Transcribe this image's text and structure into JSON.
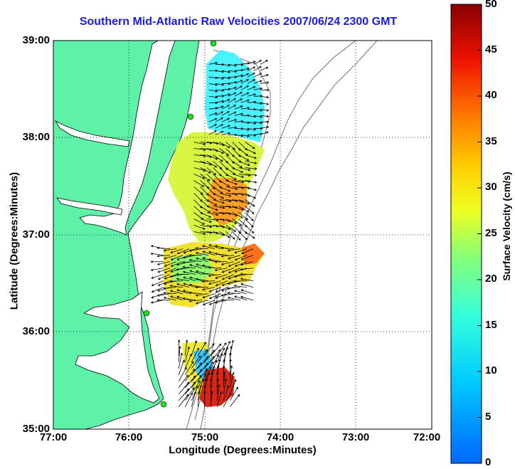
{
  "title": "Southern Mid-Atlantic Raw Velocities 2007/06/24 2300 GMT",
  "axes": {
    "xlabel": "Longitude (Degrees:Minutes)",
    "ylabel": "Latitude (Degrees:Minutes)",
    "x_ticks": [
      "77:00",
      "76:00",
      "75:00",
      "74:00",
      "73:00",
      "72:00"
    ],
    "y_ticks": [
      "39:00",
      "38:00",
      "37:00",
      "36:00",
      "35:00"
    ],
    "x_range": [
      -77,
      -72
    ],
    "y_range": [
      35,
      39
    ],
    "grid": "dotted"
  },
  "colorbar": {
    "label": "Surface Velocity (cm/s)",
    "ticks": [
      "0",
      "5",
      "10",
      "15",
      "20",
      "25",
      "30",
      "35",
      "40",
      "45",
      "50"
    ],
    "range": [
      0,
      50
    ],
    "colormap": "jet"
  },
  "colors": {
    "land": "#5ef2a8",
    "title": "#1a1ae6",
    "coast": "#000000",
    "bathymetry": "#888888",
    "stations": "#22dd22"
  },
  "velocity_regions": [
    {
      "name": "north-cluster",
      "lon": [
        -75.0,
        -74.2
      ],
      "lat": [
        38.0,
        38.8
      ],
      "speed": 11
    },
    {
      "name": "central-cluster",
      "lon": [
        -75.2,
        -74.4
      ],
      "lat": [
        37.0,
        38.0
      ],
      "speed": 24
    },
    {
      "name": "mid-cluster",
      "lon": [
        -75.6,
        -74.3
      ],
      "lat": [
        36.3,
        36.9
      ],
      "speed": 28
    },
    {
      "name": "south-cluster",
      "lon": [
        -75.4,
        -74.6
      ],
      "lat": [
        35.2,
        35.8
      ],
      "speed": 40
    }
  ]
}
